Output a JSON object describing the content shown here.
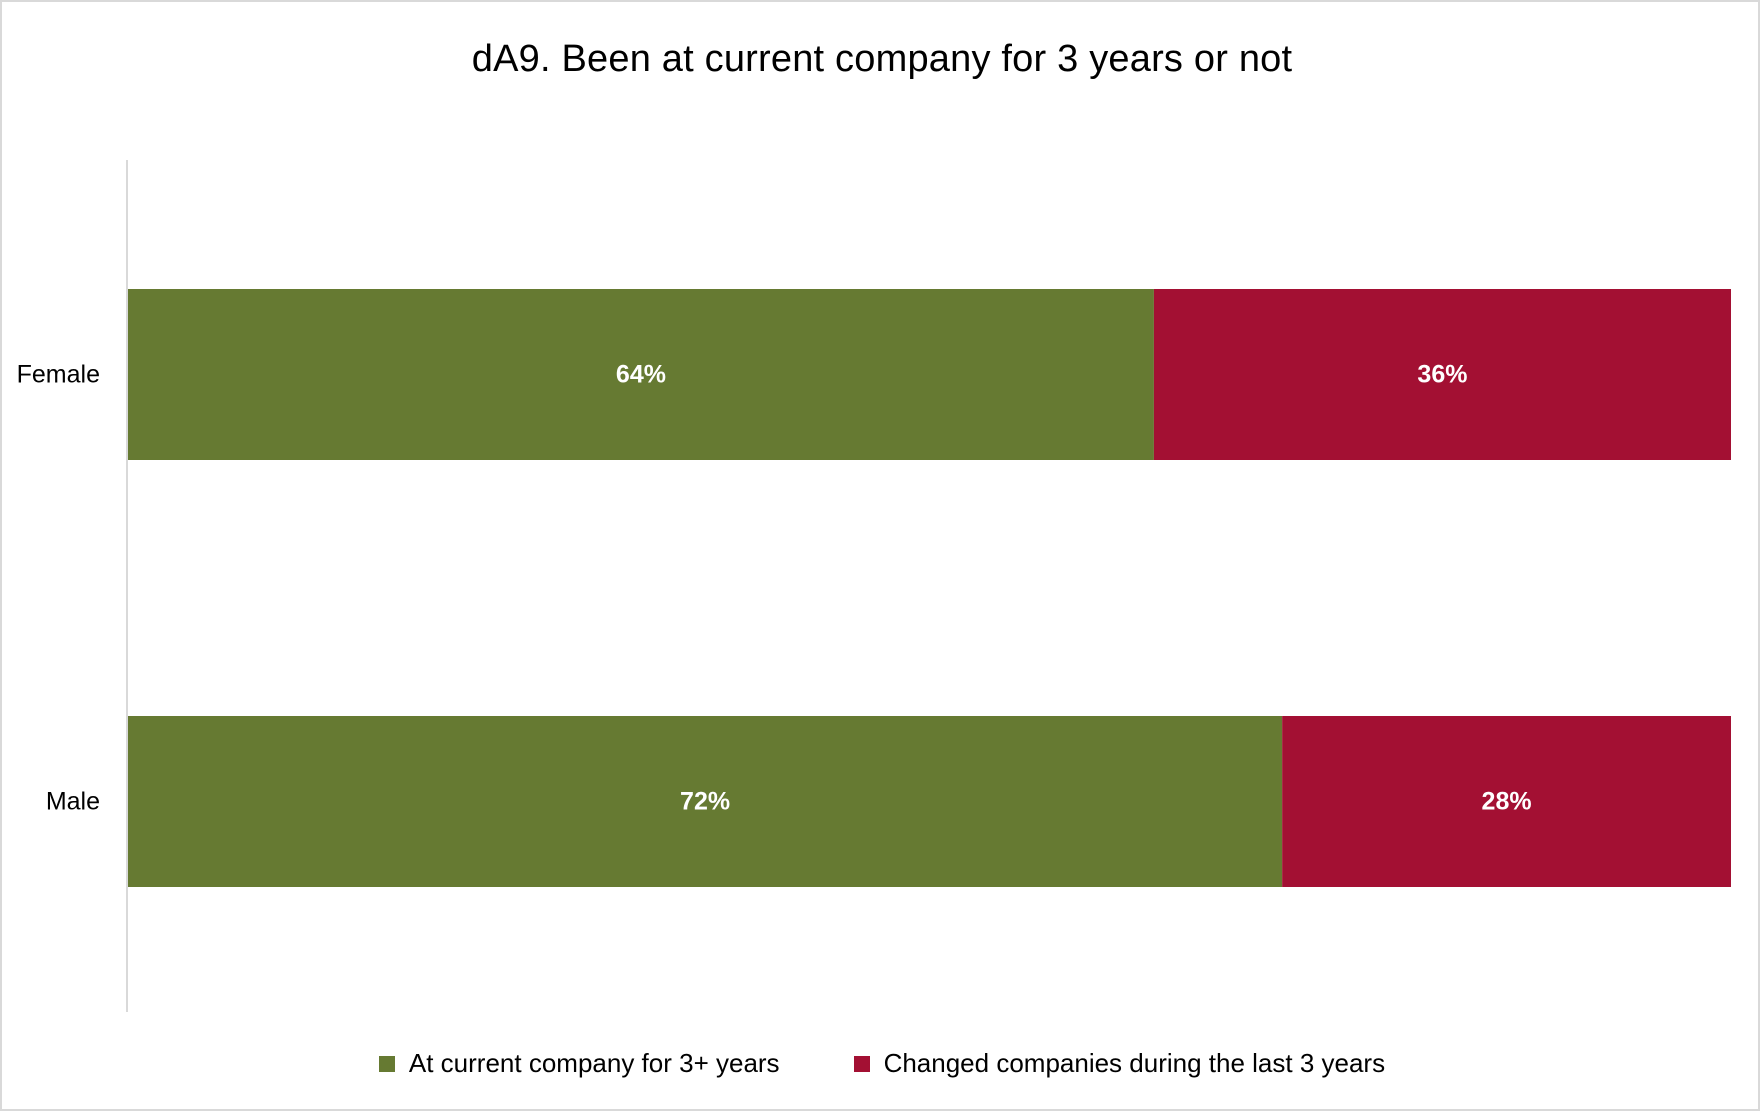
{
  "chart_data": {
    "type": "bar",
    "orientation": "horizontal",
    "stacked": true,
    "title": "dA9. Been at current company for 3 years or not",
    "categories": [
      "Female",
      "Male"
    ],
    "series": [
      {
        "name": "At current company for 3+ years",
        "values": [
          64,
          72
        ],
        "labels": [
          "64%",
          "72%"
        ],
        "color": "#667a32"
      },
      {
        "name": "Changed companies during the last 3 years",
        "values": [
          36,
          28
        ],
        "labels": [
          "36%",
          "28%"
        ],
        "color": "#a31033"
      }
    ],
    "xlim": [
      0,
      100
    ],
    "grid": false,
    "legend_position": "bottom"
  }
}
